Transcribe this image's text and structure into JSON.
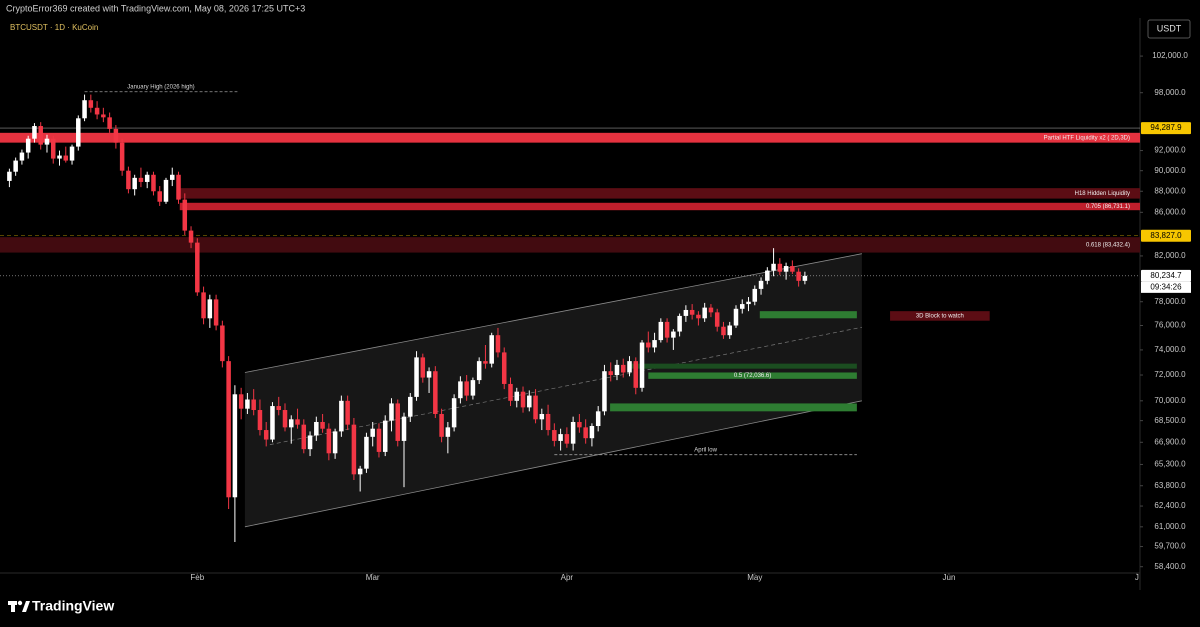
{
  "header": {
    "attribution": "CryptoError369 created with TradingView.com, May 08, 2026 17:25 UTC+3",
    "symbol": "BTCUSDT · 1D · KuCoin",
    "currency": "USDT"
  },
  "footer": {
    "brand": "TradingView"
  },
  "chart_data": {
    "type": "candlestick",
    "log_scale": true,
    "up_color": "#ffffff",
    "down_color": "#f23645",
    "open": [
      89000,
      89900,
      91000,
      91800,
      93200,
      94500,
      92600,
      93200,
      91200,
      91500,
      91000,
      92400,
      95300,
      97200,
      96400,
      95700,
      95400,
      94200,
      92800,
      90000,
      88200,
      89300,
      88900,
      89600,
      88000,
      87000,
      89100,
      89600,
      87200,
      84300,
      83200,
      78800,
      76600,
      78200,
      76000,
      73100,
      63000,
      70500,
      69400,
      70100,
      69300,
      67800,
      67100,
      69600,
      69300,
      68000,
      68600,
      68200,
      66400,
      67400,
      68400,
      67900,
      66100,
      67700,
      70000,
      68200,
      64600,
      65000,
      67300,
      67900,
      66200,
      68500,
      69800,
      67000,
      68800,
      70300,
      73400,
      71800,
      72300,
      69000,
      67300,
      68000,
      70200,
      71500,
      70400,
      71600,
      73100,
      72900,
      75200,
      73800,
      71300,
      70000,
      70700,
      69500,
      70400,
      68600,
      69000,
      67800,
      67000,
      67500,
      66800,
      68400,
      68000,
      67200,
      68100,
      69200,
      72300,
      72000,
      72800,
      72200,
      73100,
      71000,
      74600,
      74200,
      74800,
      76300,
      75000,
      75500,
      76800,
      77300,
      76900,
      76600,
      77500,
      77100,
      75900,
      75200,
      76000,
      77400,
      77800,
      78000,
      79100,
      79800,
      80700,
      81300,
      80600,
      81100,
      80600,
      79800
    ],
    "high": [
      90200,
      91300,
      92100,
      93500,
      94800,
      94900,
      93600,
      93500,
      92000,
      92400,
      92600,
      95600,
      97800,
      97800,
      97100,
      96400,
      95900,
      94600,
      93200,
      90400,
      89600,
      90300,
      89900,
      89900,
      88500,
      89300,
      90300,
      89900,
      87800,
      84700,
      83600,
      79300,
      78600,
      78600,
      76400,
      73500,
      71200,
      71000,
      70600,
      70900,
      70100,
      68400,
      69900,
      70300,
      69800,
      68900,
      69400,
      68600,
      67700,
      68800,
      69000,
      68300,
      67900,
      70400,
      70400,
      68700,
      65200,
      67600,
      68400,
      68300,
      68900,
      70200,
      70100,
      69100,
      70600,
      73900,
      73700,
      72600,
      72700,
      69400,
      68400,
      70500,
      71900,
      72000,
      71800,
      73400,
      74400,
      75400,
      75800,
      74200,
      71800,
      71000,
      71100,
      70800,
      70900,
      69400,
      69700,
      68300,
      67900,
      68000,
      68800,
      69000,
      68600,
      68300,
      69600,
      72800,
      73000,
      73200,
      73300,
      73500,
      73400,
      74800,
      75500,
      75400,
      76600,
      76600,
      75700,
      77000,
      77700,
      77800,
      77200,
      77900,
      77800,
      77400,
      76300,
      76300,
      77700,
      78200,
      78400,
      79400,
      80100,
      81000,
      82700,
      81800,
      81400,
      81600,
      80900,
      80600
    ],
    "low": [
      88400,
      89500,
      90600,
      91200,
      92800,
      92100,
      91800,
      90700,
      90500,
      90800,
      90600,
      92000,
      95000,
      95900,
      95200,
      94900,
      93800,
      92200,
      89500,
      87800,
      87600,
      88400,
      88300,
      87600,
      86600,
      86800,
      88500,
      86800,
      83900,
      82700,
      78500,
      76100,
      75800,
      75600,
      72600,
      62200,
      60000,
      68600,
      69000,
      68900,
      67400,
      66600,
      66900,
      68900,
      67700,
      66800,
      67900,
      66100,
      65900,
      67000,
      67600,
      65600,
      65700,
      67300,
      67800,
      64200,
      63400,
      64700,
      66600,
      65800,
      65900,
      67700,
      66600,
      63700,
      68400,
      70000,
      71400,
      70600,
      68700,
      66900,
      66100,
      67700,
      69800,
      70000,
      70100,
      71300,
      72500,
      72600,
      73400,
      70900,
      69600,
      69500,
      69100,
      69200,
      68300,
      67800,
      67400,
      66600,
      66300,
      66500,
      66300,
      67600,
      66800,
      66600,
      67700,
      68900,
      71500,
      71600,
      71800,
      71900,
      70500,
      70700,
      73800,
      73800,
      74600,
      74600,
      74000,
      75100,
      76300,
      76500,
      76000,
      76300,
      76700,
      75500,
      74900,
      74900,
      75800,
      77000,
      77200,
      77700,
      78600,
      79500,
      80200,
      80300,
      79900,
      80400,
      79300,
      79500
    ],
    "close": [
      89900,
      91000,
      91800,
      93200,
      94500,
      92600,
      93200,
      91200,
      91500,
      91000,
      92400,
      95300,
      97200,
      96400,
      95700,
      95400,
      94200,
      92800,
      90000,
      88200,
      89300,
      88900,
      89600,
      88000,
      87000,
      89100,
      89600,
      87200,
      84300,
      83200,
      78800,
      76600,
      78200,
      76000,
      73100,
      63000,
      70500,
      69400,
      70100,
      69300,
      67800,
      67100,
      69600,
      69300,
      68000,
      68600,
      68200,
      66400,
      67400,
      68400,
      67900,
      66100,
      67700,
      70000,
      68200,
      64600,
      65000,
      67300,
      67900,
      66200,
      68500,
      69800,
      67000,
      68800,
      70300,
      73400,
      71800,
      72300,
      69000,
      67300,
      68000,
      70200,
      71500,
      70400,
      71600,
      73100,
      72900,
      75200,
      73800,
      71300,
      70000,
      70700,
      69500,
      70400,
      68600,
      69000,
      67800,
      67000,
      67500,
      66800,
      68400,
      68000,
      67200,
      68100,
      69200,
      72300,
      72000,
      72800,
      72200,
      73100,
      71000,
      74600,
      74200,
      74800,
      76300,
      75000,
      75500,
      76800,
      77300,
      76900,
      76600,
      77500,
      77100,
      75900,
      75200,
      76000,
      77400,
      77800,
      78000,
      79100,
      79800,
      80700,
      81300,
      80600,
      81100,
      80600,
      79800,
      80234.7
    ],
    "xlim": [
      -1.5,
      180.5
    ],
    "xticks": [
      {
        "value": 30,
        "label": "Feb"
      },
      {
        "value": 58,
        "label": "Mar"
      },
      {
        "value": 89,
        "label": "Apr"
      },
      {
        "value": 119,
        "label": "May"
      },
      {
        "value": 150,
        "label": "Jun"
      },
      {
        "value": 180,
        "label": "J"
      }
    ],
    "ylim": [
      58000,
      107500
    ],
    "yticks": [
      {
        "value": 102000,
        "label": "102,000.0"
      },
      {
        "value": 98000,
        "label": "98,000.0"
      },
      {
        "value": 92000,
        "label": "92,000.0"
      },
      {
        "value": 90000,
        "label": "90,000.0"
      },
      {
        "value": 88000,
        "label": "88,000.0"
      },
      {
        "value": 86000,
        "label": "86,000.0"
      },
      {
        "value": 82000,
        "label": "82,000.0"
      },
      {
        "value": 78000,
        "label": "78,000.0"
      },
      {
        "value": 76000,
        "label": "76,000.0"
      },
      {
        "value": 74000,
        "label": "74,000.0"
      },
      {
        "value": 72000,
        "label": "72,000.0"
      },
      {
        "value": 70000,
        "label": "70,000.0"
      },
      {
        "value": 68500,
        "label": "68,500.0"
      },
      {
        "value": 66900,
        "label": "66,900.0"
      },
      {
        "value": 65300,
        "label": "65,300.0"
      },
      {
        "value": 63800,
        "label": "63,800.0"
      },
      {
        "value": 62400,
        "label": "62,400.0"
      },
      {
        "value": 61000,
        "label": "61,000.0"
      },
      {
        "value": 59700,
        "label": "59,700.0"
      },
      {
        "value": 58400,
        "label": "58,400.0"
      }
    ],
    "zones": [
      {
        "label": "Partial HTF Liquidity x2 ( 2D,3D)",
        "from": -1.5,
        "to": 180.5,
        "top": 93800,
        "bottom": 92800,
        "color": "#e5323f"
      },
      {
        "label": "H18 Hidden Liquidity",
        "from": 27.2,
        "to": 180.5,
        "top": 88300,
        "bottom": 87300,
        "color": "#5c0d14"
      },
      {
        "label": "0.705 (86,731.1)",
        "from": 27.2,
        "to": 180.5,
        "top": 86900,
        "bottom": 86200,
        "color": "#c01f2c"
      },
      {
        "label": "0.618 (83,432.4)",
        "from": -1.5,
        "to": 180.5,
        "top": 83700,
        "bottom": 82300,
        "color": "#420b10"
      },
      {
        "label": "3D Block to watch",
        "from": 140.6,
        "to": 156.5,
        "top": 77200,
        "bottom": 76400,
        "color": "#5c0d14"
      },
      {
        "from": 119.8,
        "to": 135.3,
        "top": 77200,
        "bottom": 76600,
        "color": "#2e7d32"
      },
      {
        "from": 99,
        "to": 135.3,
        "top": 72900,
        "bottom": 72500,
        "color": "#1b4d20"
      },
      {
        "label": "0.5 (72,036.6)",
        "from": 102,
        "to": 135.3,
        "top": 72200,
        "bottom": 71700,
        "color": "#2e7d32"
      },
      {
        "from": 95.9,
        "to": 135.3,
        "top": 69800,
        "bottom": 69200,
        "color": "#2e7d32"
      }
    ],
    "annotations": [
      {
        "label": "January High (2026 high)",
        "value": 98100,
        "from": 12,
        "to": 36.4
      },
      {
        "label": "April low",
        "value": 66000,
        "from": 87,
        "to": 135.3
      }
    ],
    "channel": {
      "upper": [
        [
          37.6,
          72200
        ],
        [
          136.1,
          82200
        ]
      ],
      "lower": [
        [
          37.6,
          61000
        ],
        [
          136.1,
          70000
        ]
      ]
    },
    "price_lines": [
      {
        "value": 94287.9,
        "label": "94,287.9",
        "color": "#f7c600",
        "style": "solid"
      },
      {
        "value": 83827,
        "label": "83,827.0",
        "color": "#f7c600",
        "style": "dashed"
      },
      {
        "value": 80234.7,
        "label": "80,234.7",
        "color": "#ffffff",
        "style": "dotted"
      }
    ],
    "countdown": "09:34:26"
  }
}
